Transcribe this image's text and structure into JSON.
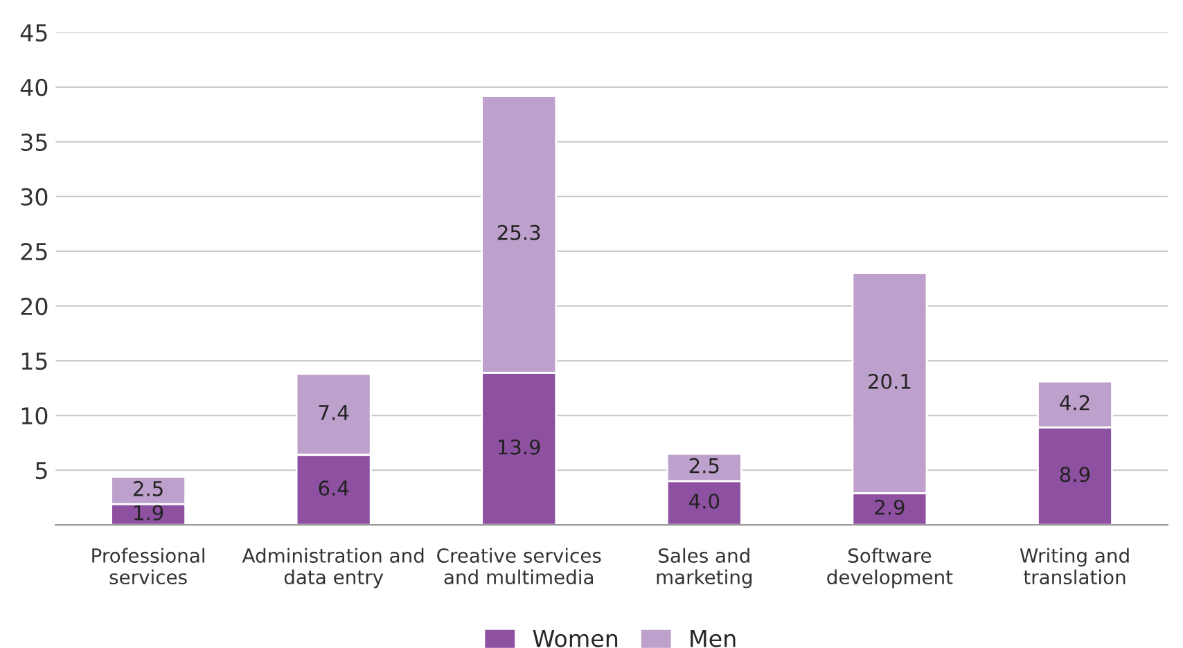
{
  "chart_data": {
    "type": "bar",
    "stacked": true,
    "categories": [
      "Professional\nservices",
      "Administration and\ndata entry",
      "Creative services\nand multimedia",
      "Sales and\nmarketing",
      "Software\ndevelopment",
      "Writing and\ntranslation"
    ],
    "series": [
      {
        "name": "Women",
        "color": "#8e50a1",
        "values": [
          1.9,
          6.4,
          13.9,
          4.0,
          2.9,
          8.9
        ],
        "value_labels": [
          "1.9",
          "6.4",
          "13.9",
          "4.0",
          "2.9",
          "8.9"
        ]
      },
      {
        "name": "Men",
        "color": "#bda0cb",
        "values": [
          2.5,
          7.4,
          25.3,
          2.5,
          20.1,
          4.2
        ],
        "value_labels": [
          "2.5",
          "7.4",
          "25.3",
          "2.5",
          "20.1",
          "4.2"
        ]
      }
    ],
    "ylim": [
      0,
      45
    ],
    "yticks": [
      5,
      10,
      15,
      20,
      25,
      30,
      35,
      40,
      45
    ],
    "grid": "y",
    "legend": "bottom"
  }
}
